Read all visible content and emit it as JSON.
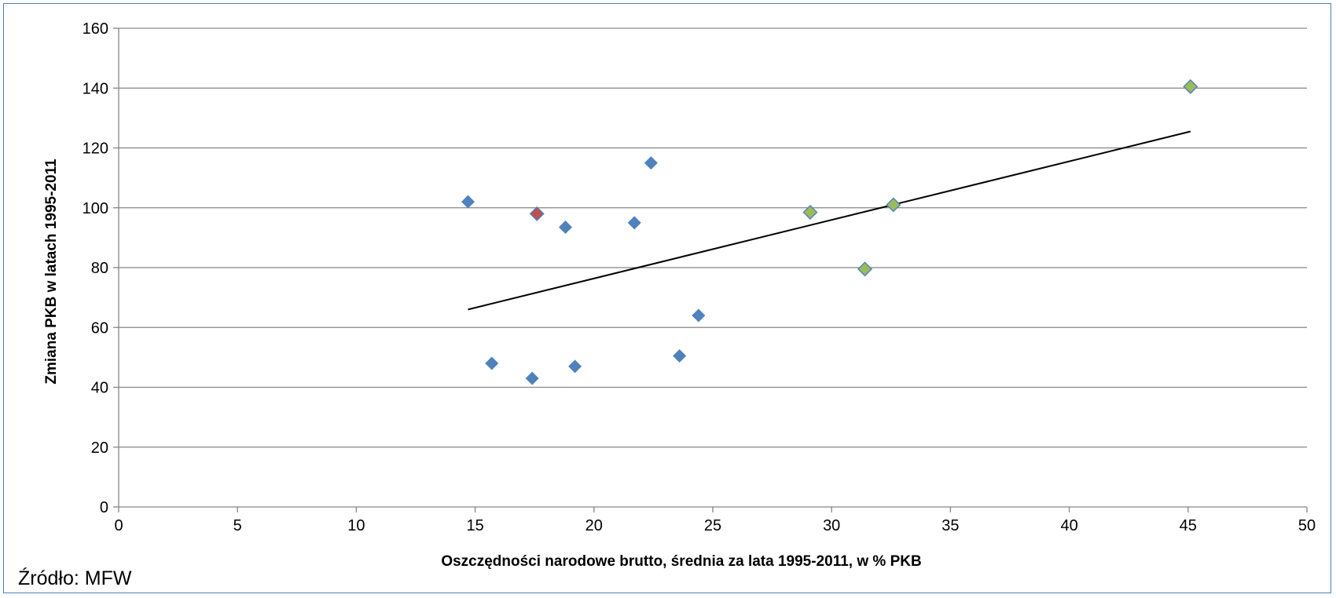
{
  "source_note": "Źródło: MFW",
  "colors": {
    "grid": "#868686",
    "axis": "#868686",
    "trendline": "#000000",
    "series_blue": "#4f81bd",
    "series_red": "#c0504d",
    "series_green": "#9bbb59"
  },
  "chart_data": {
    "type": "scatter",
    "title": "",
    "xlabel": "Oszczędności narodowe brutto, średnia za lata 1995-2011, w % PKB",
    "ylabel": "Zmiana PKB w latach 1995-2011",
    "xlim": [
      0,
      50
    ],
    "ylim": [
      0,
      160
    ],
    "x_ticks": [
      0,
      5,
      10,
      15,
      20,
      25,
      30,
      35,
      40,
      45,
      50
    ],
    "y_ticks": [
      0,
      20,
      40,
      60,
      80,
      100,
      120,
      140,
      160
    ],
    "grid": "horizontal",
    "legend": "none",
    "marker": "diamond",
    "series": [
      {
        "color": "#4f81bd",
        "points": [
          {
            "x": 14.7,
            "y": 102
          },
          {
            "x": 15.7,
            "y": 48
          },
          {
            "x": 17.4,
            "y": 43
          },
          {
            "x": 18.8,
            "y": 93.5
          },
          {
            "x": 19.2,
            "y": 47
          },
          {
            "x": 21.7,
            "y": 95
          },
          {
            "x": 22.4,
            "y": 115
          },
          {
            "x": 23.6,
            "y": 50.5
          },
          {
            "x": 24.4,
            "y": 64
          }
        ]
      },
      {
        "color": "#c0504d",
        "points": [
          {
            "x": 17.6,
            "y": 98
          }
        ]
      },
      {
        "color": "#9bbb59",
        "points": [
          {
            "x": 29.1,
            "y": 98.5
          },
          {
            "x": 31.4,
            "y": 79.5
          },
          {
            "x": 32.6,
            "y": 101
          },
          {
            "x": 45.1,
            "y": 140.5
          }
        ]
      }
    ],
    "trendline": {
      "type": "linear",
      "from": {
        "x": 14.7,
        "y": 66
      },
      "to": {
        "x": 45.1,
        "y": 125.5
      }
    }
  }
}
